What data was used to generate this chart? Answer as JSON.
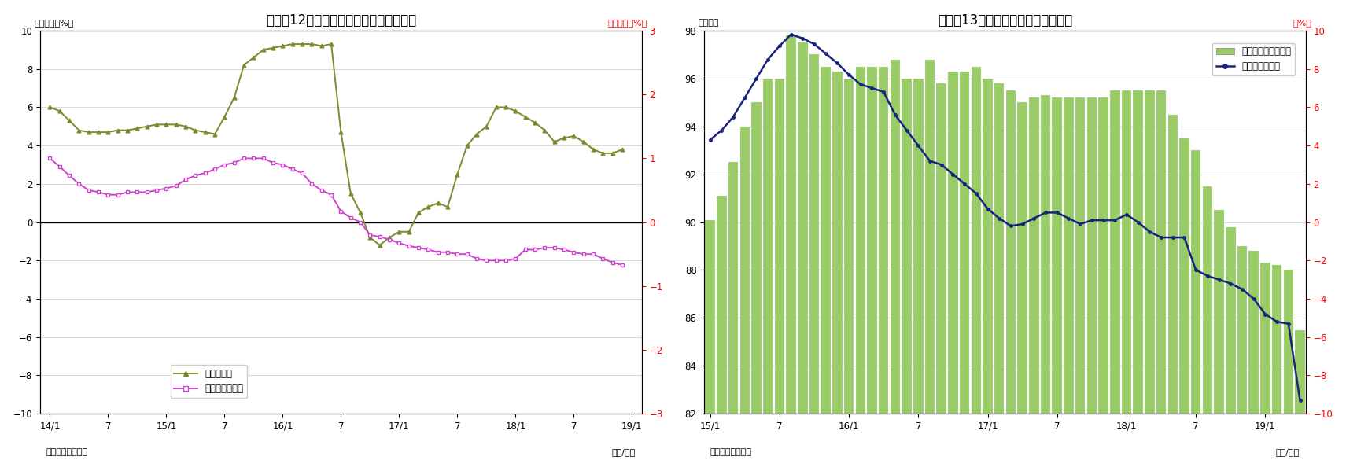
{
  "chart12": {
    "title": "（図表12）金銭の信託・準通貨の伸び率",
    "ylabel_left": "（前年比、%）",
    "ylabel_right": "（前年比、%）",
    "xlabel": "（年/月）",
    "source": "（資料）日本銀行",
    "ylim_left": [
      -10,
      10
    ],
    "ylim_right": [
      -3,
      3
    ],
    "kinsen_y": [
      6.0,
      5.8,
      5.3,
      4.8,
      4.7,
      4.7,
      4.7,
      4.8,
      4.8,
      4.9,
      5.0,
      5.1,
      5.1,
      5.1,
      5.0,
      4.8,
      4.7,
      4.6,
      5.5,
      6.5,
      8.2,
      8.6,
      9.0,
      9.1,
      9.2,
      9.3,
      9.3,
      9.3,
      9.2,
      9.3,
      4.7,
      1.5,
      0.5,
      -0.8,
      -1.2,
      -0.8,
      -0.5,
      -0.5,
      0.5,
      0.8,
      1.0,
      0.8,
      2.5,
      4.0,
      4.6,
      5.0,
      6.0,
      6.0,
      5.8,
      5.5,
      5.2,
      4.8,
      4.2,
      4.4,
      4.5,
      4.2,
      3.8,
      3.6,
      3.6,
      3.8
    ],
    "juntsuka_y": [
      1.0,
      0.87,
      0.73,
      0.6,
      0.5,
      0.47,
      0.43,
      0.43,
      0.47,
      0.47,
      0.47,
      0.5,
      0.53,
      0.57,
      0.67,
      0.73,
      0.77,
      0.83,
      0.9,
      0.93,
      1.0,
      1.0,
      1.0,
      0.93,
      0.9,
      0.83,
      0.77,
      0.6,
      0.5,
      0.43,
      0.17,
      0.07,
      0.0,
      -0.2,
      -0.23,
      -0.27,
      -0.33,
      -0.37,
      -0.4,
      -0.43,
      -0.47,
      -0.47,
      -0.5,
      -0.5,
      -0.57,
      -0.6,
      -0.6,
      -0.6,
      -0.57,
      -0.43,
      -0.43,
      -0.4,
      -0.4,
      -0.43,
      -0.47,
      -0.5,
      -0.5,
      -0.57,
      -0.63,
      -0.67
    ],
    "kinsen_color": "#7a8c2e",
    "juntsuka_color": "#cc44cc",
    "legend_labels": [
      "金銭の信託",
      "準通貨（右軸）"
    ],
    "xtick_positions": [
      0,
      6,
      12,
      18,
      24,
      30,
      36,
      42,
      48,
      54,
      60
    ],
    "xtick_labels": [
      "14/1",
      "7",
      "15/1",
      "7",
      "16/1",
      "7",
      "17/1",
      "7",
      "18/1",
      "7",
      "19/1"
    ]
  },
  "chart13": {
    "title": "（図表13）投資信託の残高と伸び率",
    "ylabel_left": "（兆円）",
    "ylabel_right": "（%）",
    "xlabel": "（年/月）",
    "source": "（資料）日本銀行",
    "ylim_left": [
      82,
      98
    ],
    "ylim_right": [
      -10,
      10
    ],
    "bar_y": [
      90.1,
      91.1,
      92.5,
      94.0,
      95.0,
      96.0,
      96.0,
      97.8,
      97.5,
      97.0,
      96.5,
      96.3,
      96.0,
      96.5,
      96.5,
      96.5,
      96.8,
      96.0,
      96.0,
      96.8,
      95.8,
      96.3,
      96.3,
      96.5,
      96.0,
      95.8,
      95.5,
      95.0,
      95.2,
      95.3,
      95.2,
      95.2,
      95.2,
      95.2,
      95.2,
      95.5,
      95.5,
      95.5,
      95.5,
      95.5,
      94.5,
      93.5,
      93.0,
      91.5,
      90.5,
      89.8,
      89.0,
      88.8,
      88.3,
      88.2,
      88.0,
      85.5
    ],
    "line_y": [
      4.3,
      4.8,
      5.5,
      6.5,
      7.5,
      8.5,
      9.2,
      9.8,
      9.6,
      9.3,
      8.8,
      8.3,
      7.7,
      7.2,
      7.0,
      6.8,
      5.6,
      4.8,
      4.0,
      3.2,
      3.0,
      2.5,
      2.0,
      1.5,
      0.7,
      0.2,
      -0.2,
      -0.1,
      0.2,
      0.5,
      0.5,
      0.2,
      -0.1,
      0.1,
      0.1,
      0.1,
      0.4,
      0.0,
      -0.5,
      -0.8,
      -0.8,
      -0.8,
      -2.5,
      -2.8,
      -3.0,
      -3.2,
      -3.5,
      -4.0,
      -4.8,
      -5.2,
      -5.3,
      -9.3
    ],
    "bar_color": "#99cc66",
    "line_color": "#1a237e",
    "xtick_positions": [
      0,
      6,
      12,
      18,
      24,
      30,
      36,
      42,
      48
    ],
    "xtick_labels": [
      "15/1",
      "7",
      "16/1",
      "7",
      "17/1",
      "7",
      "18/1",
      "7",
      "19/1"
    ]
  }
}
